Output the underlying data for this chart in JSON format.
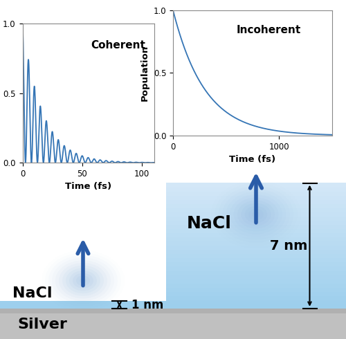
{
  "fig_width": 5.0,
  "fig_height": 4.9,
  "dpi": 100,
  "bg_color": "#ffffff",
  "coherent_label": "Coherent",
  "incoherent_label": "Incoherent",
  "xlabel_coherent": "Time (fs)",
  "xlabel_incoherent": "Time (fs)",
  "ylabel": "Population",
  "coherent_xlim": [
    0,
    110
  ],
  "coherent_ylim": [
    0,
    1
  ],
  "coherent_xticks": [
    0,
    50,
    100
  ],
  "coherent_yticks": [
    0,
    0.5,
    1
  ],
  "incoherent_xlim": [
    0,
    1500
  ],
  "incoherent_ylim": [
    0,
    1
  ],
  "incoherent_xticks": [
    0,
    1000
  ],
  "incoherent_yticks": [
    0,
    0.5,
    1
  ],
  "line_color": "#3575b5",
  "nacl_color": "#9dcfed",
  "nacl_color_top": "#c5e4f5",
  "silver_color": "#c0c0c0",
  "silver_color_bottom": "#d0d0d0",
  "white_bg": "#ffffff",
  "nacl_label": "NaCl",
  "silver_label": "Silver",
  "annotation_1nm": "1 nm",
  "annotation_7nm": "7 nm",
  "arrow_color": "#2a5ca8",
  "dim_arrow_color": "#000000"
}
